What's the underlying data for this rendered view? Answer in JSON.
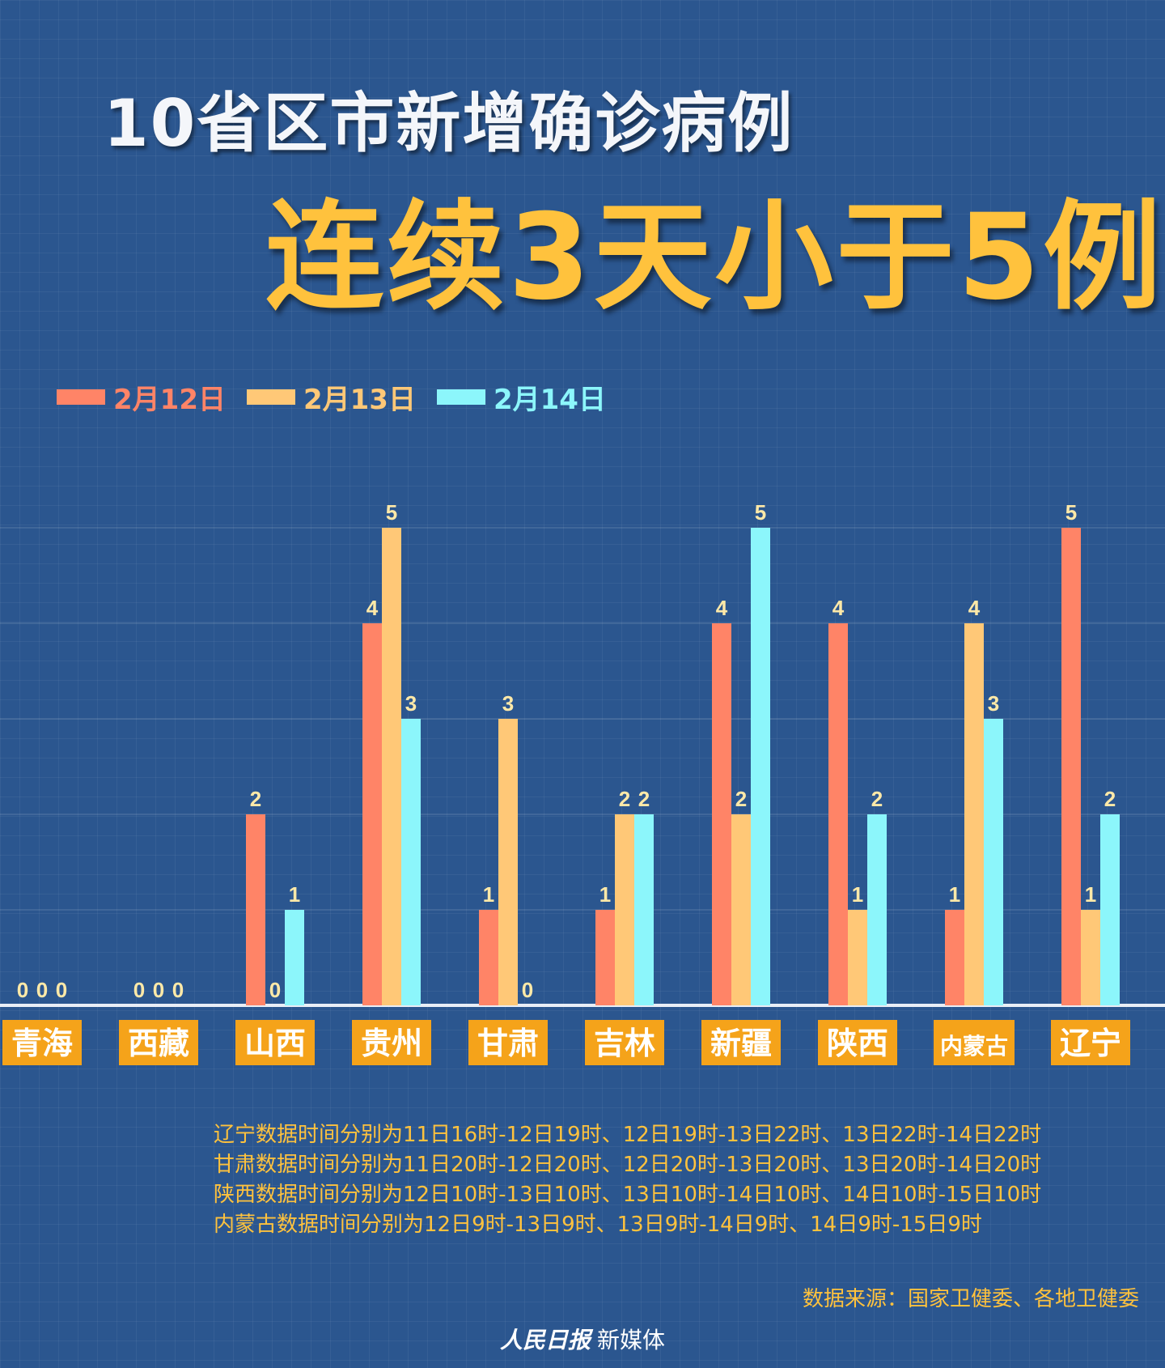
{
  "title": {
    "line1": "10省区市新增确诊病例",
    "line2": "连续3天小于5例"
  },
  "chart_data": {
    "type": "bar",
    "categories": [
      "青海",
      "西藏",
      "山西",
      "贵州",
      "甘肃",
      "吉林",
      "新疆",
      "陕西",
      "内蒙古",
      "辽宁"
    ],
    "series": [
      {
        "name": "2月12日",
        "color": "#ff8467",
        "values": [
          0,
          0,
          2,
          4,
          1,
          1,
          4,
          4,
          1,
          5
        ]
      },
      {
        "name": "2月13日",
        "color": "#ffc877",
        "values": [
          0,
          0,
          0,
          5,
          3,
          2,
          2,
          1,
          4,
          1
        ]
      },
      {
        "name": "2月14日",
        "color": "#8cf6fb",
        "values": [
          0,
          0,
          1,
          3,
          0,
          2,
          5,
          2,
          3,
          2
        ]
      }
    ],
    "ylim": [
      0,
      5
    ],
    "category_label_bg": "#f5a31a",
    "value_label_color": "#ffe9a8"
  },
  "notes": [
    "辽宁数据时间分别为11日16时-12日19时、12日19时-13日22时、13日22时-14日22时",
    "甘肃数据时间分别为11日20时-12日20时、12日20时-13日20时、13日20时-14日20时",
    "陕西数据时间分别为12日10时-13日10时、13日10时-14日10时、14日10时-15日10时",
    "内蒙古数据时间分别为12日9时-13日9时、13日9时-14日9时、14日9时-15日9时"
  ],
  "source": "数据来源：国家卫健委、各地卫健委",
  "footer": {
    "brand": "人民日报",
    "suffix": "新媒体"
  }
}
